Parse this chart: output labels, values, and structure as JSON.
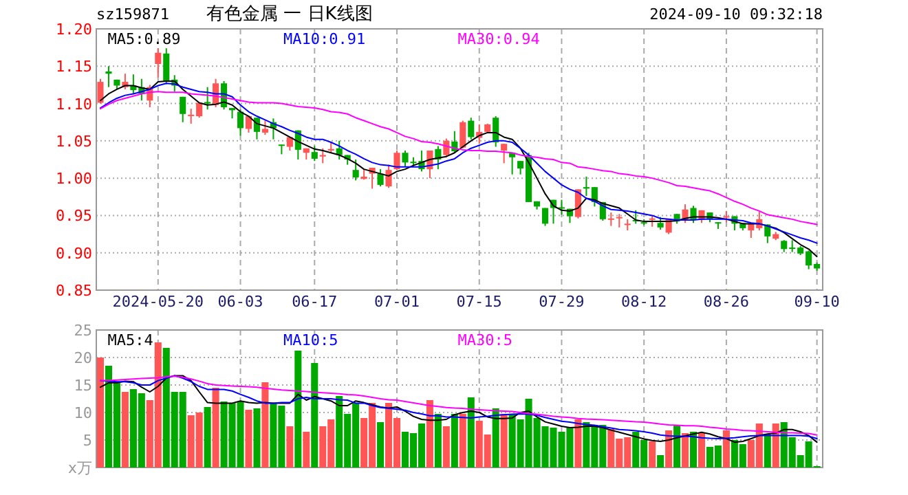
{
  "chart_data": [
    {
      "type": "candlestick",
      "title": "有色金属 一 日K线图",
      "annotations": [
        "sz159871",
        "2024-09-10 09:32:18"
      ],
      "categories": [
        null,
        null,
        null,
        null,
        null,
        null,
        null,
        "2024-05-20",
        null,
        null,
        null,
        null,
        null,
        null,
        null,
        null,
        null,
        "06-03",
        null,
        null,
        null,
        null,
        null,
        null,
        null,
        null,
        "06-17",
        null,
        null,
        null,
        null,
        null,
        null,
        null,
        null,
        null,
        "07-01",
        null,
        null,
        null,
        null,
        null,
        null,
        null,
        null,
        null,
        "07-15",
        null,
        null,
        null,
        null,
        null,
        null,
        null,
        null,
        null,
        "07-29",
        null,
        null,
        null,
        null,
        null,
        null,
        null,
        null,
        null,
        "08-12",
        null,
        null,
        null,
        null,
        null,
        null,
        null,
        null,
        null,
        "08-26",
        null,
        null,
        null,
        null,
        null,
        null,
        null,
        null,
        null,
        null,
        "09-10"
      ],
      "ohlc": [
        [
          1.101,
          1.133,
          1.1,
          1.129
        ],
        [
          1.143,
          1.15,
          1.122,
          1.14
        ],
        [
          1.132,
          1.132,
          1.119,
          1.124
        ],
        [
          1.122,
          1.14,
          1.119,
          1.129
        ],
        [
          1.124,
          1.139,
          1.113,
          1.118
        ],
        [
          1.122,
          1.133,
          1.104,
          1.113
        ],
        [
          1.104,
          1.125,
          1.095,
          1.122
        ],
        [
          1.153,
          1.174,
          1.135,
          1.168
        ],
        [
          1.167,
          1.174,
          1.126,
          1.13
        ],
        [
          1.132,
          1.138,
          1.116,
          1.124
        ],
        [
          1.109,
          1.109,
          1.075,
          1.086
        ],
        [
          1.084,
          1.093,
          1.073,
          1.085
        ],
        [
          1.083,
          1.101,
          1.081,
          1.101
        ],
        [
          1.102,
          1.122,
          1.092,
          1.1
        ],
        [
          1.098,
          1.133,
          1.095,
          1.127
        ],
        [
          1.127,
          1.13,
          1.092,
          1.095
        ],
        [
          1.094,
          1.094,
          1.08,
          1.091
        ],
        [
          1.089,
          1.092,
          1.057,
          1.067
        ],
        [
          1.066,
          1.083,
          1.061,
          1.083
        ],
        [
          1.081,
          1.081,
          1.052,
          1.062
        ],
        [
          1.061,
          1.077,
          1.058,
          1.066
        ],
        [
          1.075,
          1.08,
          1.052,
          1.067
        ],
        [
          1.045,
          1.045,
          1.032,
          1.044
        ],
        [
          1.042,
          1.055,
          1.037,
          1.055
        ],
        [
          1.064,
          1.064,
          1.025,
          1.038
        ],
        [
          1.034,
          1.04,
          1.025,
          1.04
        ],
        [
          1.035,
          1.043,
          1.023,
          1.026
        ],
        [
          1.029,
          1.04,
          1.02,
          1.031
        ],
        [
          1.037,
          1.049,
          1.034,
          1.039
        ],
        [
          1.04,
          1.05,
          1.025,
          1.031
        ],
        [
          1.031,
          1.031,
          1.018,
          1.025
        ],
        [
          1.011,
          1.025,
          0.997,
          1.001
        ],
        [
          0.999,
          1.012,
          0.998,
          1.002
        ],
        [
          1.006,
          1.014,
          0.986,
          1.014
        ],
        [
          1.006,
          1.012,
          0.989,
          0.991
        ],
        [
          0.989,
          1.018,
          0.987,
          1.011
        ],
        [
          1.012,
          1.037,
          1.011,
          1.034
        ],
        [
          1.034,
          1.037,
          1.015,
          1.021
        ],
        [
          1.022,
          1.028,
          1.015,
          1.021
        ],
        [
          1.023,
          1.037,
          1.009,
          1.012
        ],
        [
          1.012,
          1.037,
          1.0,
          1.037
        ],
        [
          1.039,
          1.043,
          1.012,
          1.025
        ],
        [
          1.031,
          1.053,
          1.028,
          1.05
        ],
        [
          1.049,
          1.063,
          1.034,
          1.036
        ],
        [
          1.041,
          1.077,
          1.04,
          1.075
        ],
        [
          1.077,
          1.081,
          1.052,
          1.055
        ],
        [
          1.054,
          1.072,
          1.046,
          1.062
        ],
        [
          1.062,
          1.073,
          1.061,
          1.072
        ],
        [
          1.081,
          1.083,
          1.042,
          1.048
        ],
        [
          1.037,
          1.046,
          1.02,
          1.046
        ],
        [
          1.034,
          1.034,
          1.005,
          1.028
        ],
        [
          1.023,
          1.023,
          1.005,
          1.013
        ],
        [
          1.031,
          1.034,
          0.968,
          0.968
        ],
        [
          0.969,
          0.969,
          0.958,
          0.962
        ],
        [
          0.96,
          0.96,
          0.936,
          0.939
        ],
        [
          0.971,
          0.971,
          0.939,
          0.96
        ],
        [
          0.961,
          0.971,
          0.951,
          0.96
        ],
        [
          0.959,
          0.959,
          0.94,
          0.949
        ],
        [
          0.948,
          0.985,
          0.946,
          0.985
        ],
        [
          0.988,
          1.002,
          0.976,
          0.986
        ],
        [
          0.988,
          0.988,
          0.962,
          0.968
        ],
        [
          0.968,
          0.968,
          0.943,
          0.945
        ],
        [
          0.945,
          0.954,
          0.936,
          0.946
        ],
        [
          0.947,
          0.952,
          0.934,
          0.948
        ],
        [
          0.938,
          0.945,
          0.93,
          0.939
        ],
        [
          0.944,
          0.957,
          0.939,
          0.943
        ],
        [
          0.941,
          0.945,
          0.937,
          0.94
        ],
        [
          0.945,
          0.95,
          0.935,
          0.946
        ],
        [
          0.94,
          0.948,
          0.931,
          0.934
        ],
        [
          0.927,
          0.945,
          0.925,
          0.945
        ],
        [
          0.952,
          0.952,
          0.939,
          0.942
        ],
        [
          0.944,
          0.965,
          0.94,
          0.958
        ],
        [
          0.96,
          0.963,
          0.94,
          0.945
        ],
        [
          0.944,
          0.957,
          0.94,
          0.957
        ],
        [
          0.954,
          0.954,
          0.941,
          0.945
        ],
        [
          0.941,
          0.941,
          0.932,
          0.94
        ],
        [
          0.948,
          0.956,
          0.941,
          0.949
        ],
        [
          0.949,
          0.949,
          0.93,
          0.939
        ],
        [
          0.94,
          0.94,
          0.93,
          0.933
        ],
        [
          0.93,
          0.939,
          0.92,
          0.939
        ],
        [
          0.933,
          0.955,
          0.93,
          0.945
        ],
        [
          0.938,
          0.938,
          0.913,
          0.922
        ],
        [
          0.919,
          0.928,
          0.917,
          0.925
        ],
        [
          0.916,
          0.917,
          0.901,
          0.905
        ],
        [
          0.907,
          0.917,
          0.901,
          0.906
        ],
        [
          0.907,
          0.909,
          0.897,
          0.899
        ],
        [
          0.902,
          0.903,
          0.878,
          0.883
        ],
        [
          0.885,
          0.887,
          0.876,
          0.879
        ]
      ],
      "colors": [
        "#ff5555",
        "#00a800",
        "#00a800",
        "#ff5555",
        "#00a800",
        "#00a800",
        "#ff5555",
        "#ff5555",
        "#00a800",
        "#00a800",
        "#00a800",
        "#ff5555",
        "#ff5555",
        "#00a800",
        "#ff5555",
        "#00a800",
        "#00a800",
        "#00a800",
        "#ff5555",
        "#00a800",
        "#ff5555",
        "#00a800",
        "#00a800",
        "#ff5555",
        "#00a800",
        "#ff5555",
        "#00a800",
        "#ff5555",
        "#ff5555",
        "#00a800",
        "#00a800",
        "#00a800",
        "#ff5555",
        "#ff5555",
        "#00a800",
        "#ff5555",
        "#ff5555",
        "#00a800",
        "#00a800",
        "#00a800",
        "#ff5555",
        "#00a800",
        "#ff5555",
        "#00a800",
        "#ff5555",
        "#00a800",
        "#ff5555",
        "#ff5555",
        "#00a800",
        "#ff5555",
        "#00a800",
        "#00a800",
        "#00a800",
        "#00a800",
        "#00a800",
        "#00a800",
        "#00a800",
        "#00a800",
        "#ff5555",
        "#00a800",
        "#00a800",
        "#00a800",
        "#ff5555",
        "#ff5555",
        "#ff5555",
        "#00a800",
        "#00a800",
        "#ff5555",
        "#00a800",
        "#ff5555",
        "#00a800",
        "#ff5555",
        "#00a800",
        "#ff5555",
        "#00a800",
        "#00a800",
        "#ff5555",
        "#00a800",
        "#00a800",
        "#ff5555",
        "#ff5555",
        "#00a800",
        "#ff5555",
        "#00a800",
        "#00a800",
        "#00a800",
        "#00a800",
        "#00a800"
      ],
      "series": [
        {
          "type": "line",
          "name": "MA5:0.89",
          "color": "#000000",
          "values": [
            1.104,
            1.113,
            1.119,
            1.124,
            1.124,
            1.121,
            1.119,
            1.129,
            1.13,
            1.13,
            1.119,
            1.11,
            1.101,
            1.098,
            1.099,
            1.102,
            1.098,
            1.089,
            1.083,
            1.073,
            1.07,
            1.067,
            1.061,
            1.055,
            1.049,
            1.044,
            1.039,
            1.037,
            1.034,
            1.031,
            1.026,
            1.02,
            1.012,
            1.009,
            1.006,
            1.003,
            1.009,
            1.012,
            1.017,
            1.021,
            1.025,
            1.027,
            1.029,
            1.034,
            1.042,
            1.05,
            1.057,
            1.061,
            1.061,
            1.055,
            1.052,
            1.04,
            1.021,
            1.0,
            0.979,
            0.963,
            0.957,
            0.956,
            0.96,
            0.973,
            0.971,
            0.966,
            0.963,
            0.96,
            0.952,
            0.944,
            0.942,
            0.942,
            0.942,
            0.942,
            0.943,
            0.946,
            0.948,
            0.948,
            0.948,
            0.947,
            0.945,
            0.942,
            0.939,
            0.939,
            0.939,
            0.936,
            0.933,
            0.927,
            0.919,
            0.911,
            0.905,
            0.895
          ]
        },
        {
          "type": "line",
          "name": "MA10:0.91",
          "color": "#0000ff",
          "values": [
            1.094,
            1.101,
            1.107,
            1.111,
            1.113,
            1.116,
            1.119,
            1.124,
            1.127,
            1.126,
            1.122,
            1.119,
            1.116,
            1.115,
            1.113,
            1.113,
            1.109,
            1.098,
            1.089,
            1.083,
            1.078,
            1.073,
            1.069,
            1.064,
            1.06,
            1.055,
            1.052,
            1.052,
            1.048,
            1.043,
            1.037,
            1.032,
            1.026,
            1.021,
            1.018,
            1.017,
            1.015,
            1.015,
            1.015,
            1.015,
            1.017,
            1.019,
            1.023,
            1.026,
            1.034,
            1.04,
            1.044,
            1.048,
            1.05,
            1.05,
            1.048,
            1.04,
            1.031,
            1.02,
            1.009,
            1.0,
            0.991,
            0.985,
            0.981,
            0.973,
            0.969,
            0.963,
            0.958,
            0.957,
            0.956,
            0.954,
            0.952,
            0.95,
            0.946,
            0.945,
            0.944,
            0.944,
            0.944,
            0.945,
            0.945,
            0.945,
            0.945,
            0.944,
            0.943,
            0.94,
            0.939,
            0.936,
            0.932,
            0.928,
            0.924,
            0.92,
            0.917,
            0.913
          ]
        },
        {
          "type": "line",
          "name": "MA30:0.94",
          "color": "#ff00ff",
          "values": [
            1.093,
            1.099,
            1.104,
            1.107,
            1.11,
            1.113,
            1.115,
            1.116,
            1.115,
            1.115,
            1.115,
            1.113,
            1.112,
            1.111,
            1.11,
            1.108,
            1.106,
            1.104,
            1.102,
            1.101,
            1.101,
            1.101,
            1.1,
            1.098,
            1.096,
            1.095,
            1.094,
            1.092,
            1.089,
            1.088,
            1.086,
            1.081,
            1.077,
            1.073,
            1.069,
            1.066,
            1.061,
            1.056,
            1.053,
            1.049,
            1.048,
            1.046,
            1.043,
            1.04,
            1.038,
            1.037,
            1.037,
            1.036,
            1.036,
            1.035,
            1.034,
            1.031,
            1.029,
            1.028,
            1.026,
            1.025,
            1.021,
            1.02,
            1.015,
            1.014,
            1.012,
            1.01,
            1.009,
            1.006,
            1.005,
            1.003,
            1.002,
            1.0,
            0.997,
            0.994,
            0.99,
            0.989,
            0.987,
            0.985,
            0.983,
            0.979,
            0.974,
            0.969,
            0.965,
            0.96,
            0.956,
            0.951,
            0.949,
            0.947,
            0.945,
            0.942,
            0.94,
            0.938
          ]
        }
      ],
      "ylim": [
        0.85,
        1.2
      ],
      "yticks": [
        0.85,
        {
          "value": 0.9,
          "label": "0.90"
        },
        0.95,
        {
          "value": 1.0,
          "label": "1.00"
        },
        1.05,
        {
          "value": 1.1,
          "label": "1.10"
        },
        1.15,
        {
          "value": 1.2,
          "label": "1.20"
        }
      ],
      "grid": true,
      "legend": "top"
    },
    {
      "type": "bar",
      "categories": [
        null,
        null,
        null,
        null,
        null,
        null,
        null,
        null,
        null,
        null,
        null,
        null,
        null,
        null,
        null,
        null,
        null,
        null,
        null,
        null,
        null,
        null,
        null,
        null,
        null,
        null,
        null,
        null,
        null,
        null,
        null,
        null,
        null,
        null,
        null,
        null,
        null,
        null,
        null,
        null,
        null,
        null,
        null,
        null,
        null,
        null,
        null,
        null,
        null,
        null,
        null,
        null,
        null,
        null,
        null,
        null,
        null,
        null,
        null,
        null,
        null,
        null,
        null,
        null,
        null,
        null,
        null,
        null,
        null,
        null,
        null,
        null,
        null,
        null,
        null,
        null,
        null,
        null,
        null,
        null,
        null,
        null,
        null,
        null,
        null,
        null,
        null,
        null
      ],
      "series": [
        {
          "colors": [
            "#ff5555",
            "#00a800",
            "#00a800",
            "#ff5555",
            "#00a800",
            "#00a800",
            "#ff5555",
            "#ff5555",
            "#00a800",
            "#00a800",
            "#00a800",
            "#ff5555",
            "#ff5555",
            "#00a800",
            "#ff5555",
            "#00a800",
            "#00a800",
            "#00a800",
            "#ff5555",
            "#00a800",
            "#ff5555",
            "#00a800",
            "#00a800",
            "#ff5555",
            "#00a800",
            "#ff5555",
            "#00a800",
            "#ff5555",
            "#ff5555",
            "#00a800",
            "#00a800",
            "#00a800",
            "#ff5555",
            "#ff5555",
            "#00a800",
            "#ff5555",
            "#ff5555",
            "#00a800",
            "#00a800",
            "#00a800",
            "#ff5555",
            "#00a800",
            "#ff5555",
            "#00a800",
            "#ff5555",
            "#00a800",
            "#ff5555",
            "#ff5555",
            "#00a800",
            "#ff5555",
            "#00a800",
            "#00a800",
            "#00a800",
            "#00a800",
            "#00a800",
            "#00a800",
            "#00a800",
            "#00a800",
            "#ff5555",
            "#00a800",
            "#00a800",
            "#00a800",
            "#ff5555",
            "#ff5555",
            "#ff5555",
            "#00a800",
            "#00a800",
            "#ff5555",
            "#00a800",
            "#ff5555",
            "#00a800",
            "#ff5555",
            "#00a800",
            "#ff5555",
            "#00a800",
            "#00a800",
            "#ff5555",
            "#00a800",
            "#00a800",
            "#ff5555",
            "#ff5555",
            "#00a800",
            "#ff5555",
            "#00a800",
            "#00a800",
            "#00a800",
            "#00a800",
            "#00a800"
          ],
          "values": [
            20.0,
            18.5,
            15.5,
            13.75,
            14.25,
            13.5,
            12.25,
            22.75,
            21.75,
            13.75,
            13.75,
            9.5,
            10.0,
            11.0,
            14.5,
            12.0,
            11.75,
            12.0,
            10.5,
            10.75,
            15.5,
            11.75,
            11.25,
            7.5,
            21.25,
            6.5,
            19.0,
            7.5,
            8.75,
            13.0,
            9.75,
            11.75,
            9.0,
            11.75,
            8.25,
            11.75,
            9.0,
            6.5,
            6.25,
            8.0,
            12.25,
            9.75,
            7.5,
            9.75,
            9.75,
            12.75,
            8.5,
            6.0,
            10.75,
            9.75,
            9.75,
            8.75,
            12.5,
            9.0,
            7.5,
            7.25,
            6.5,
            7.25,
            8.75,
            8.25,
            7.75,
            7.75,
            7.0,
            5.25,
            5.5,
            6.5,
            5.0,
            4.75,
            2.25,
            6.75,
            7.75,
            6.25,
            6.5,
            6.25,
            3.75,
            4.0,
            6.75,
            5.0,
            4.25,
            5.0,
            8.0,
            6.0,
            8.0,
            8.25,
            5.5,
            2.25,
            4.75,
            0.25
          ]
        },
        {
          "type": "line",
          "name": "MA5:4",
          "color": "#000000",
          "values": [
            14.6,
            15.4,
            15.4,
            15.7,
            15.6,
            14.6,
            13.75,
            14.75,
            16.25,
            16.7,
            16.7,
            15.8,
            13.75,
            11.8,
            11.7,
            11.7,
            11.7,
            12.1,
            11.8,
            11.7,
            11.8,
            11.7,
            11.7,
            11.7,
            13.3,
            12.25,
            12.9,
            12.5,
            12.1,
            11.25,
            11.25,
            12.1,
            11.8,
            11.4,
            11.0,
            10.8,
            11.0,
            10.25,
            9.3,
            8.75,
            8.6,
            8.6,
            8.75,
            9.6,
            10.0,
            10.25,
            10.0,
            9.2,
            8.9,
            8.9,
            9.0,
            10.0,
            10.25,
            9.2,
            8.3,
            7.9,
            7.5,
            7.25,
            7.3,
            7.5,
            7.5,
            7.25,
            6.8,
            6.4,
            6.0,
            5.6,
            5.2,
            4.9,
            4.75,
            5.0,
            5.4,
            5.75,
            6.1,
            6.4,
            6.1,
            5.6,
            5.25,
            4.6,
            4.75,
            5.25,
            5.8,
            6.1,
            6.25,
            6.9,
            6.9,
            6.5,
            5.8,
            4.6
          ]
        },
        {
          "type": "line",
          "name": "MA10:5",
          "color": "#0000ff",
          "values": [
            15.8,
            15.7,
            15.6,
            15.6,
            15.4,
            15.0,
            15.0,
            15.8,
            16.25,
            16.7,
            16.25,
            15.6,
            14.75,
            14.2,
            14.2,
            14.2,
            13.9,
            13.3,
            12.75,
            12.1,
            11.7,
            11.7,
            11.8,
            11.8,
            12.5,
            12.75,
            12.5,
            12.5,
            12.5,
            12.3,
            12.25,
            11.7,
            11.7,
            11.25,
            10.9,
            10.75,
            10.6,
            10.4,
            10.0,
            9.75,
            9.4,
            9.4,
            9.2,
            9.2,
            9.1,
            9.0,
            9.2,
            9.3,
            9.5,
            9.6,
            9.7,
            9.75,
            9.7,
            9.5,
            9.1,
            8.75,
            8.4,
            8.25,
            8.0,
            7.8,
            7.7,
            7.4,
            7.2,
            6.9,
            6.8,
            6.7,
            6.5,
            6.25,
            5.9,
            5.75,
            5.7,
            5.7,
            5.6,
            5.4,
            5.3,
            5.25,
            5.3,
            5.4,
            5.6,
            5.75,
            5.8,
            5.8,
            5.8,
            5.8,
            5.8,
            5.8,
            5.7,
            5.25
          ]
        },
        {
          "type": "line",
          "name": "MA30:5",
          "color": "#ff00ff",
          "values": [
            15.8,
            15.8,
            15.9,
            16.0,
            16.1,
            16.2,
            16.25,
            16.3,
            16.5,
            16.6,
            16.4,
            16.1,
            15.7,
            15.25,
            15.0,
            14.9,
            14.8,
            14.75,
            14.7,
            14.6,
            14.4,
            14.25,
            14.1,
            14.0,
            13.9,
            13.8,
            13.7,
            13.6,
            13.5,
            13.4,
            13.25,
            13.2,
            13.0,
            12.75,
            12.5,
            12.3,
            12.25,
            12.0,
            11.75,
            11.5,
            11.25,
            11.1,
            10.9,
            10.8,
            10.75,
            10.6,
            10.5,
            10.4,
            10.3,
            10.25,
            10.2,
            10.0,
            9.8,
            9.7,
            9.5,
            9.3,
            9.2,
            9.1,
            8.9,
            8.8,
            8.75,
            8.7,
            8.6,
            8.5,
            8.4,
            8.3,
            8.25,
            8.1,
            7.9,
            7.75,
            7.7,
            7.6,
            7.6,
            7.5,
            7.3,
            7.2,
            7.0,
            6.9,
            6.75,
            6.7,
            6.6,
            6.5,
            6.4,
            6.3,
            6.3,
            6.25,
            6.2,
            5.9
          ]
        }
      ],
      "ylim": [
        0,
        25
      ],
      "yticks": [
        {
          "value": 0,
          "label": "x万"
        },
        5,
        10,
        15,
        20,
        25
      ],
      "tick_labels": "y",
      "grid": true,
      "legend": "top"
    }
  ]
}
